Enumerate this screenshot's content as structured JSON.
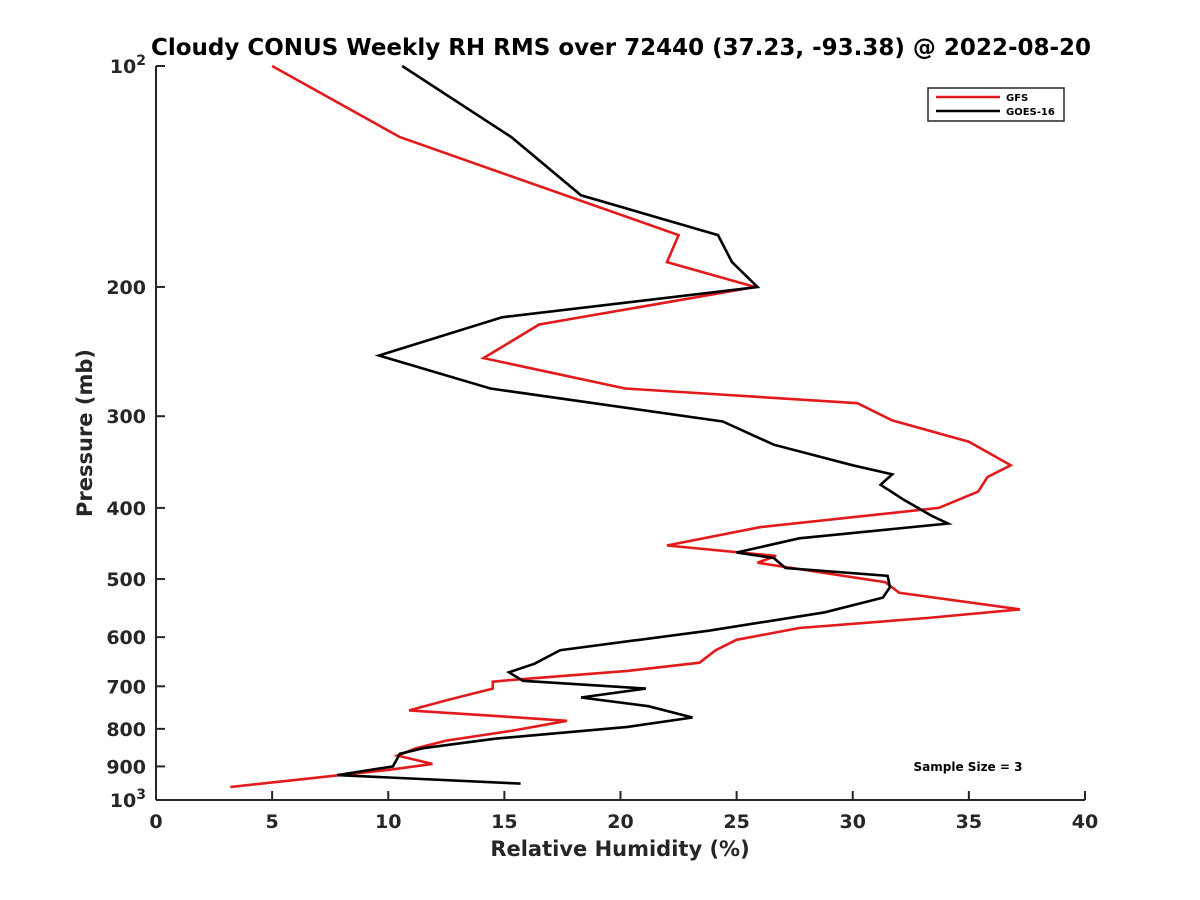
{
  "chart_data": {
    "type": "line",
    "title": "Cloudy CONUS Weekly RH RMS over 72440 (37.23, -93.38) @ 2022-08-20",
    "xlabel": "Relative Humidity (%)",
    "ylabel": "Pressure (mb)",
    "xlim": [
      0,
      40
    ],
    "ylim": [
      100,
      1000
    ],
    "y_scale": "log",
    "y_reversed": true,
    "grid": false,
    "legend_position": "top-right",
    "x_ticks": [
      0,
      5,
      10,
      15,
      20,
      25,
      30,
      35,
      40
    ],
    "x_tick_labels": [
      "0",
      "5",
      "10",
      "15",
      "20",
      "25",
      "30",
      "35",
      "40"
    ],
    "y_ticks": [
      100,
      200,
      300,
      400,
      500,
      600,
      700,
      800,
      900,
      1000
    ],
    "y_tick_labels": [
      {
        "base": "10",
        "exp": "2"
      },
      {
        "base": "200"
      },
      {
        "base": "300"
      },
      {
        "base": "400"
      },
      {
        "base": "500"
      },
      {
        "base": "600"
      },
      {
        "base": "700"
      },
      {
        "base": "800"
      },
      {
        "base": "900"
      },
      {
        "base": "10",
        "exp": "3"
      }
    ],
    "annotation": "Sample Size = 3",
    "series": [
      {
        "name": "GFS",
        "color": "#e31a1c",
        "points": [
          [
            5.0,
            100
          ],
          [
            10.5,
            125
          ],
          [
            22.5,
            170
          ],
          [
            22.0,
            185
          ],
          [
            25.8,
            200
          ],
          [
            16.5,
            225
          ],
          [
            14.1,
            250
          ],
          [
            20.2,
            275
          ],
          [
            30.2,
            288
          ],
          [
            31.7,
            304
          ],
          [
            35.0,
            325
          ],
          [
            36.8,
            350
          ],
          [
            35.8,
            363
          ],
          [
            35.4,
            380
          ],
          [
            33.7,
            400
          ],
          [
            26.0,
            425
          ],
          [
            22.0,
            450
          ],
          [
            26.7,
            465
          ],
          [
            25.9,
            475
          ],
          [
            31.4,
            505
          ],
          [
            32.0,
            522
          ],
          [
            37.2,
            550
          ],
          [
            33.2,
            565
          ],
          [
            27.7,
            583
          ],
          [
            25.0,
            605
          ],
          [
            24.1,
            625
          ],
          [
            23.4,
            650
          ],
          [
            20.3,
            667
          ],
          [
            15.6,
            685
          ],
          [
            14.5,
            690
          ],
          [
            14.5,
            705
          ],
          [
            12.6,
            730
          ],
          [
            10.9,
            755
          ],
          [
            15.1,
            770
          ],
          [
            17.7,
            780
          ],
          [
            15.3,
            805
          ],
          [
            12.5,
            830
          ],
          [
            11.2,
            850
          ],
          [
            10.4,
            870
          ],
          [
            11.9,
            893
          ],
          [
            10.0,
            910
          ],
          [
            3.2,
            960
          ]
        ]
      },
      {
        "name": "GOES-16",
        "color": "#000000",
        "points": [
          [
            10.6,
            100
          ],
          [
            15.3,
            125
          ],
          [
            18.3,
            150
          ],
          [
            24.2,
            170
          ],
          [
            24.8,
            185
          ],
          [
            25.9,
            200
          ],
          [
            14.9,
            220
          ],
          [
            9.6,
            248
          ],
          [
            14.4,
            275
          ],
          [
            24.4,
            305
          ],
          [
            26.6,
            328
          ],
          [
            30.0,
            350
          ],
          [
            31.7,
            360
          ],
          [
            31.2,
            372
          ],
          [
            32.2,
            390
          ],
          [
            33.4,
            410
          ],
          [
            34.1,
            420
          ],
          [
            27.7,
            440
          ],
          [
            25.0,
            460
          ],
          [
            26.6,
            468
          ],
          [
            27.1,
            483
          ],
          [
            31.5,
            495
          ],
          [
            31.6,
            513
          ],
          [
            31.3,
            530
          ],
          [
            28.8,
            555
          ],
          [
            23.8,
            588
          ],
          [
            17.4,
            625
          ],
          [
            16.3,
            652
          ],
          [
            15.2,
            670
          ],
          [
            15.8,
            688
          ],
          [
            21.1,
            705
          ],
          [
            18.3,
            725
          ],
          [
            21.2,
            745
          ],
          [
            23.1,
            772
          ],
          [
            20.3,
            795
          ],
          [
            14.6,
            825
          ],
          [
            11.5,
            850
          ],
          [
            10.5,
            865
          ],
          [
            10.2,
            900
          ],
          [
            7.8,
            925
          ],
          [
            15.7,
            950
          ]
        ]
      }
    ]
  }
}
